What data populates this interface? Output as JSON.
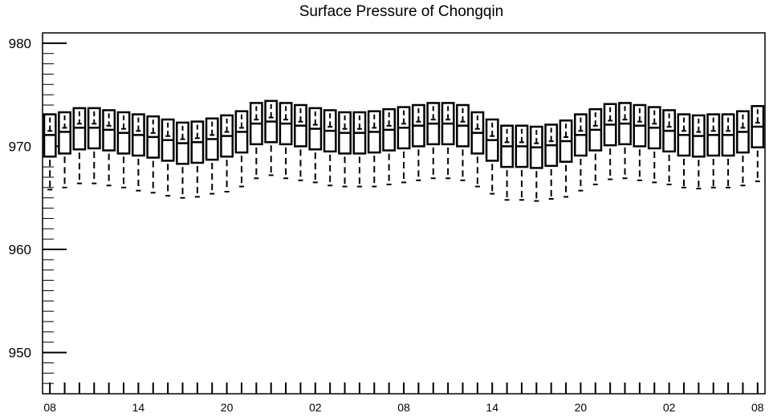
{
  "chart_data": {
    "type": "box",
    "title": "Surface Pressure of Chongqin",
    "xlabel": "",
    "ylabel": "",
    "ylim": [
      946,
      981
    ],
    "yticks": [
      "980",
      "970",
      "960",
      "950"
    ],
    "ytick_values": [
      980,
      970,
      960,
      950
    ],
    "xticks": [
      "08",
      "14",
      "20",
      "02",
      "08",
      "14",
      "20",
      "02",
      "08"
    ],
    "x_hours": [
      0,
      3,
      6,
      9,
      12,
      15,
      18,
      21,
      24,
      27,
      30,
      33,
      36,
      39,
      42,
      45,
      48
    ],
    "grid": false,
    "boxes": {
      "min": [
        965.8,
        966.0,
        966.4,
        966.4,
        966.2,
        966.0,
        965.7,
        965.5,
        965.2,
        965.0,
        965.1,
        965.4,
        965.6,
        966.1,
        966.9,
        967.2,
        966.9,
        966.7,
        966.5,
        966.2,
        966.1,
        966.1,
        966.1,
        966.3,
        966.5,
        966.7,
        966.9,
        966.9,
        966.7,
        966.1,
        965.4,
        964.8,
        964.8,
        964.7,
        964.9,
        965.1,
        965.7,
        966.3,
        966.8,
        966.9,
        966.7,
        966.5,
        966.3,
        966.0,
        965.9,
        966.0,
        966.0,
        966.2,
        966.6
      ],
      "q1": [
        969.0,
        969.3,
        969.7,
        969.8,
        969.6,
        969.3,
        969.1,
        968.9,
        968.6,
        968.3,
        968.4,
        968.7,
        969.0,
        969.4,
        970.2,
        970.4,
        970.2,
        970.0,
        969.7,
        969.5,
        969.3,
        969.3,
        969.4,
        969.6,
        969.8,
        970.0,
        970.2,
        970.2,
        970.0,
        969.3,
        968.6,
        968.0,
        968.0,
        967.9,
        968.1,
        968.5,
        969.1,
        969.6,
        970.1,
        970.2,
        970.0,
        969.8,
        969.5,
        969.1,
        969.0,
        969.1,
        969.1,
        969.4,
        969.9
      ],
      "median": [
        971.1,
        971.4,
        971.8,
        971.8,
        971.6,
        971.3,
        971.1,
        970.9,
        970.6,
        970.3,
        970.4,
        970.7,
        971.0,
        971.4,
        972.2,
        972.4,
        972.2,
        972.0,
        971.7,
        971.5,
        971.3,
        971.3,
        971.4,
        971.6,
        971.8,
        972.0,
        972.2,
        972.2,
        972.0,
        971.3,
        970.6,
        970.0,
        970.0,
        969.9,
        970.1,
        970.5,
        971.1,
        971.6,
        972.1,
        972.2,
        972.0,
        971.8,
        971.5,
        971.1,
        971.0,
        971.1,
        971.1,
        971.4,
        971.9
      ],
      "q3": [
        973.1,
        973.3,
        973.7,
        973.7,
        973.5,
        973.3,
        973.1,
        972.9,
        972.6,
        972.3,
        972.4,
        972.7,
        973.0,
        973.4,
        974.2,
        974.4,
        974.2,
        974.0,
        973.7,
        973.5,
        973.3,
        973.3,
        973.4,
        973.6,
        973.8,
        974.0,
        974.2,
        974.2,
        974.0,
        973.3,
        972.6,
        972.0,
        972.0,
        971.9,
        972.1,
        972.5,
        973.1,
        973.6,
        974.1,
        974.2,
        974.0,
        973.8,
        973.5,
        973.1,
        973.0,
        973.1,
        973.1,
        973.4,
        973.9
      ]
    }
  }
}
